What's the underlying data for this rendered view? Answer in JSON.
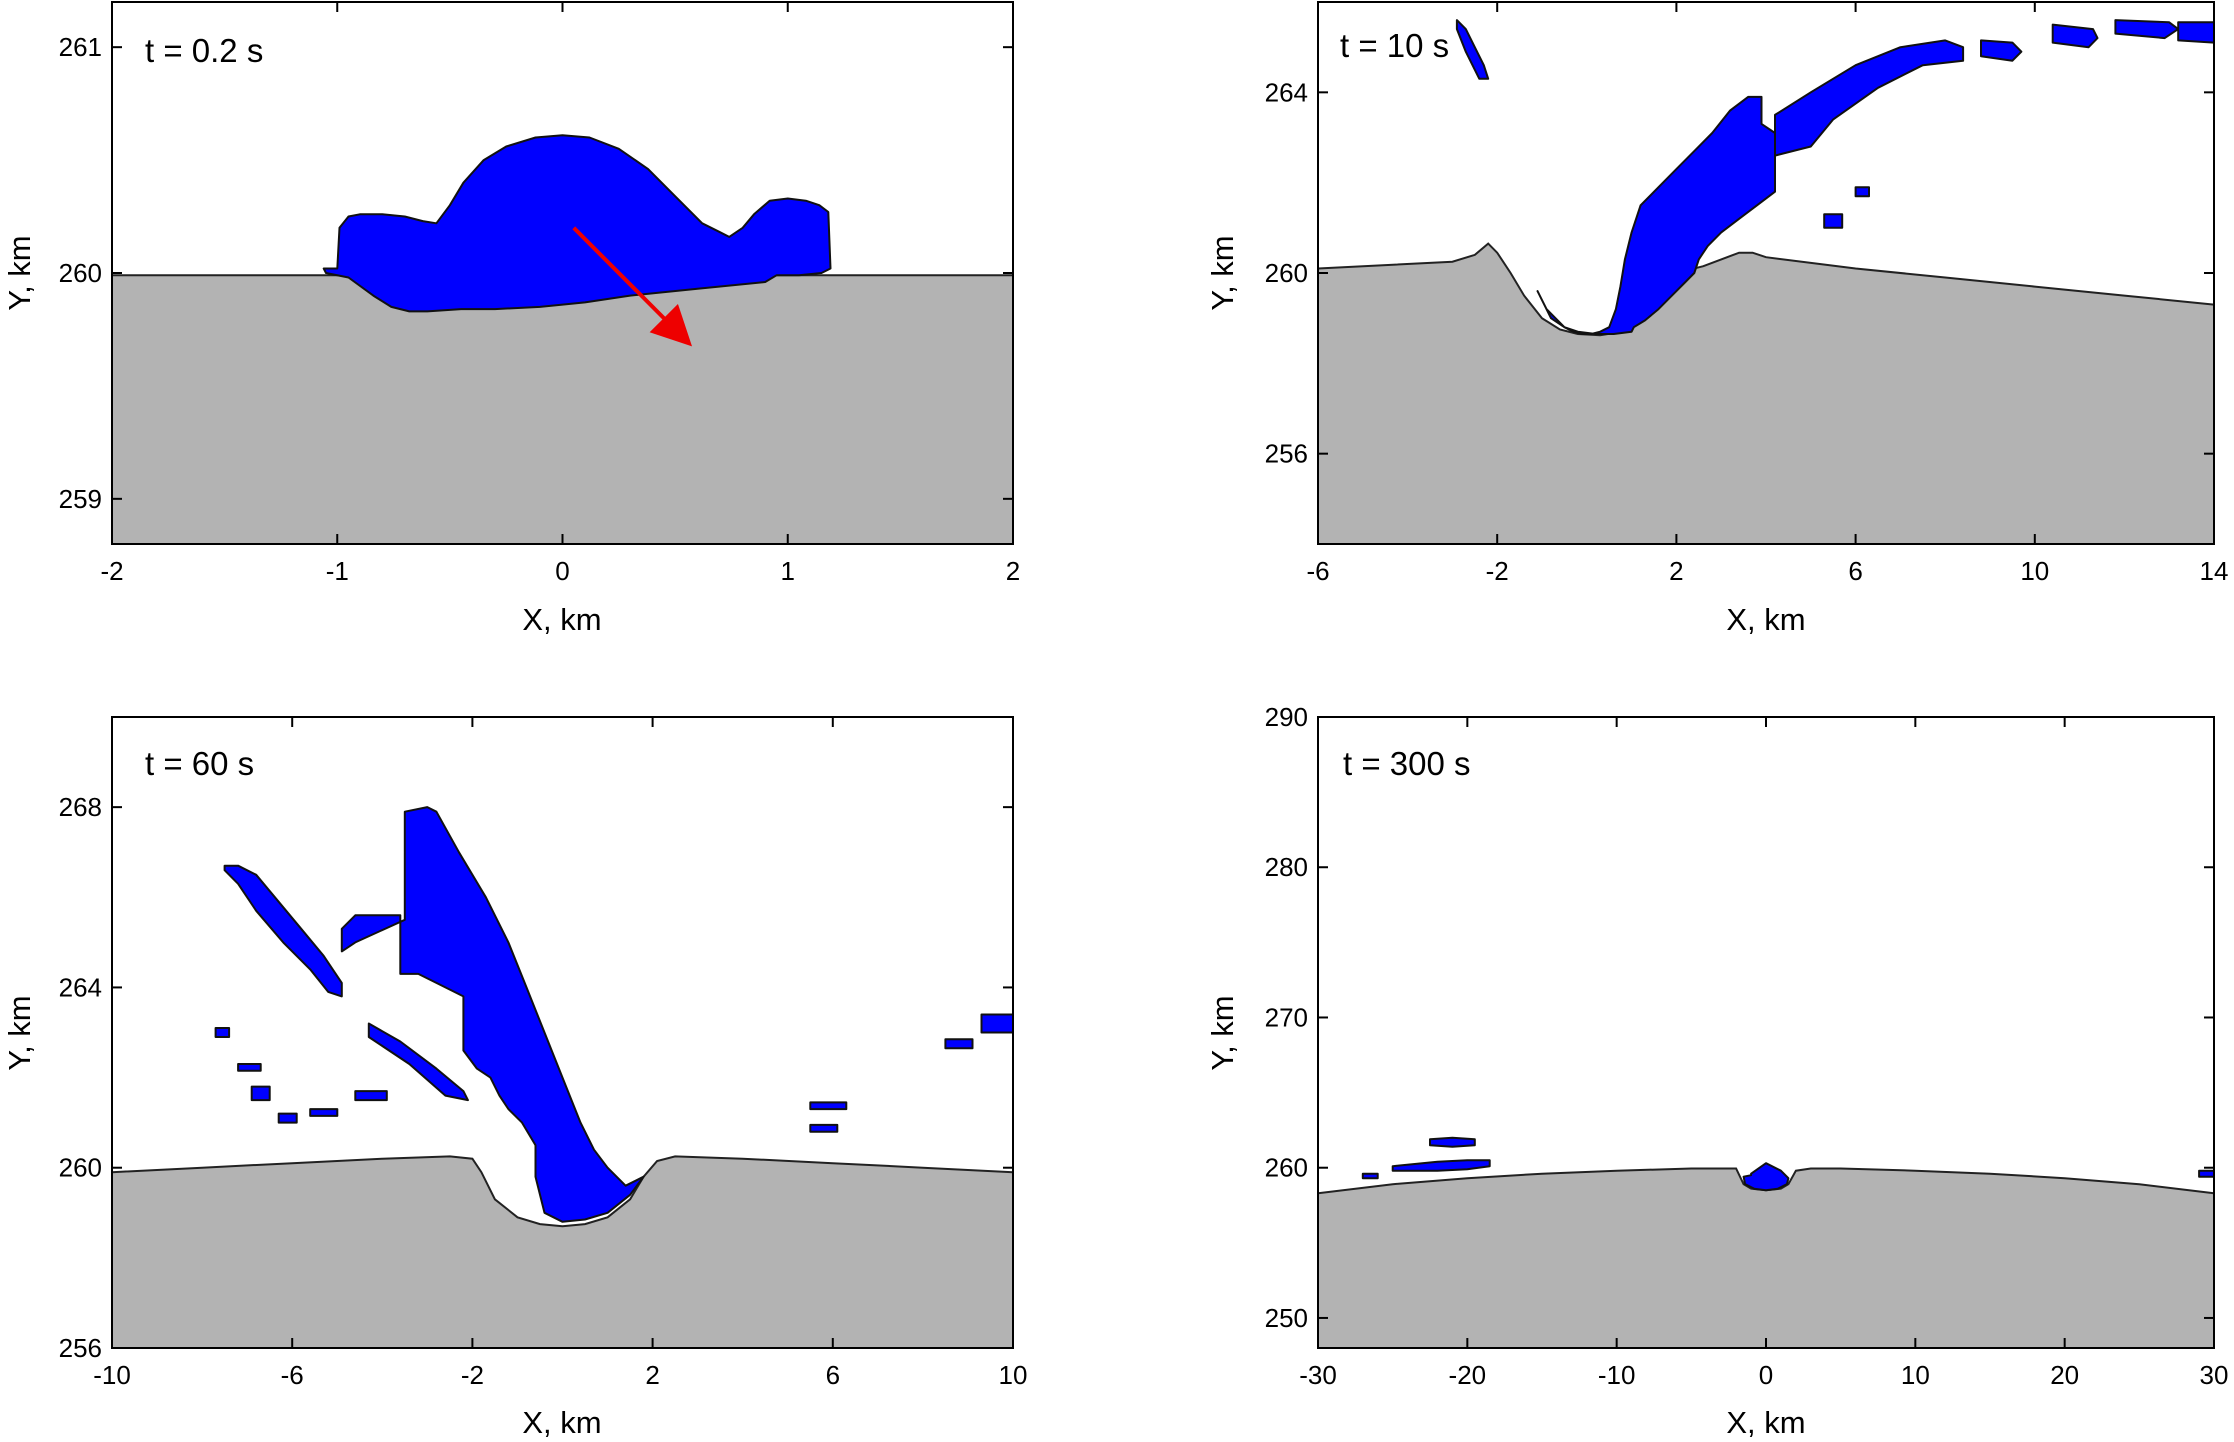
{
  "chart_data": [
    {
      "type": "area",
      "title": "t = 0.2 s",
      "xlabel": "X, km",
      "ylabel": "Y, km",
      "xlim": [
        -2,
        2
      ],
      "ylim": [
        258.8,
        261.2
      ],
      "xticks": [
        -2,
        -1,
        0,
        1,
        2
      ],
      "yticks": [
        259,
        260,
        261
      ],
      "colors": {
        "surface": "#b3b3b3",
        "ejecta": "#0000ff",
        "impactor_direction": "#ee0000"
      },
      "surface": {
        "x": [
          -2,
          2
        ],
        "y": [
          259.99,
          259.99
        ]
      },
      "ejecta": [
        {
          "x": [
            -1.0,
            -0.99,
            -0.95,
            -0.9,
            -0.8,
            -0.7,
            -0.62,
            -0.56,
            -0.5,
            -0.44,
            -0.35,
            -0.25,
            -0.12,
            0.0,
            0.12,
            0.25,
            0.38,
            0.5,
            0.62,
            0.7,
            0.74,
            0.8,
            0.85,
            0.92,
            1.0,
            1.08,
            1.14,
            1.18,
            1.19,
            1.15,
            1.05,
            0.95,
            0.9,
            0.6,
            0.3,
            0.1,
            -0.1,
            -0.3,
            -0.45,
            -0.6,
            -0.68,
            -0.76,
            -0.84,
            -0.95,
            -1.05,
            -1.06
          ],
          "y": [
            260.02,
            260.2,
            260.25,
            260.26,
            260.26,
            260.25,
            260.23,
            260.22,
            260.3,
            260.4,
            260.5,
            260.56,
            260.6,
            260.61,
            260.6,
            260.55,
            260.46,
            260.34,
            260.22,
            260.18,
            260.16,
            260.2,
            260.26,
            260.32,
            260.33,
            260.32,
            260.3,
            260.27,
            260.02,
            260.0,
            259.99,
            259.99,
            259.96,
            259.93,
            259.9,
            259.87,
            259.85,
            259.84,
            259.84,
            259.83,
            259.83,
            259.85,
            259.9,
            259.98,
            260.0,
            260.02
          ]
        }
      ],
      "arrow": {
        "from": [
          0.05,
          260.2
        ],
        "to": [
          0.55,
          259.7
        ]
      }
    },
    {
      "type": "area",
      "title": "t = 10 s",
      "xlabel": "X, km",
      "ylabel": "Y, km",
      "xlim": [
        -6,
        14
      ],
      "ylim": [
        254,
        266
      ],
      "xticks": [
        -6,
        -2,
        2,
        6,
        10,
        14
      ],
      "yticks": [
        256,
        260,
        264
      ],
      "colors": {
        "surface": "#b3b3b3",
        "ejecta": "#0000ff"
      },
      "surface": {
        "x": [
          -6,
          -3,
          -2.5,
          -2.2,
          -2.0,
          -1.7,
          -1.4,
          -1.0,
          -0.6,
          -0.2,
          0.3,
          0.8,
          1.2,
          1.5,
          1.8,
          2.2,
          2.6,
          3.0,
          3.4,
          3.7,
          4.0,
          6,
          8,
          10,
          12,
          14
        ],
        "y": [
          260.1,
          260.25,
          260.4,
          260.65,
          260.45,
          260.0,
          259.5,
          259.0,
          258.75,
          258.65,
          258.62,
          258.7,
          259.0,
          259.5,
          259.9,
          260.05,
          260.15,
          260.3,
          260.45,
          260.45,
          260.35,
          260.1,
          259.9,
          259.7,
          259.5,
          259.3
        ]
      },
      "ejecta": [
        {
          "x": [
            -0.5,
            -0.3,
            -0.1,
            0.1,
            0.3,
            0.5,
            0.65,
            0.75,
            0.85,
            1.0,
            1.2,
            1.6,
            2.0,
            2.4,
            2.8,
            3.2,
            3.6,
            3.9,
            3.9,
            4.2,
            4.2,
            3.8,
            3.4,
            3.0,
            2.7,
            2.5,
            2.4,
            2.2,
            1.9,
            1.6,
            1.3,
            1.05,
            1.0,
            0.6,
            0.2,
            -0.2,
            -0.5,
            -0.9,
            -1.1,
            -0.8
          ],
          "y": [
            258.8,
            258.7,
            258.65,
            258.65,
            258.7,
            258.8,
            259.2,
            259.7,
            260.3,
            260.9,
            261.5,
            261.9,
            262.3,
            262.7,
            263.1,
            263.6,
            263.9,
            263.9,
            263.3,
            263.1,
            261.8,
            261.5,
            261.2,
            260.9,
            260.6,
            260.3,
            260.0,
            259.8,
            259.5,
            259.2,
            258.95,
            258.8,
            258.7,
            258.65,
            258.65,
            258.7,
            258.8,
            259.2,
            259.6,
            259.0
          ]
        },
        {
          "x": [
            4.2,
            5.0,
            6.0,
            7.0,
            8.0,
            8.4,
            8.4,
            7.5,
            6.5,
            5.5,
            5.0,
            4.2
          ],
          "y": [
            263.5,
            264.0,
            264.6,
            265.0,
            265.15,
            265.0,
            264.7,
            264.6,
            264.1,
            263.4,
            262.8,
            262.6
          ]
        },
        {
          "x": [
            8.8,
            9.5,
            9.7,
            9.5,
            8.8
          ],
          "y": [
            265.15,
            265.1,
            264.9,
            264.7,
            264.8
          ]
        },
        {
          "x": [
            10.4,
            11.3,
            11.4,
            11.2,
            10.4
          ],
          "y": [
            265.5,
            265.4,
            265.2,
            265.0,
            265.1
          ]
        },
        {
          "x": [
            11.8,
            13.0,
            13.2,
            12.9,
            11.8
          ],
          "y": [
            265.6,
            265.55,
            265.4,
            265.2,
            265.3
          ]
        },
        {
          "x": [
            13.2,
            14.0,
            14.0,
            13.2
          ],
          "y": [
            265.55,
            265.55,
            265.1,
            265.15
          ]
        },
        {
          "x": [
            -2.9,
            -2.7,
            -2.5,
            -2.3,
            -2.2,
            -2.4,
            -2.7,
            -2.9
          ],
          "y": [
            265.6,
            265.4,
            265.0,
            264.6,
            264.3,
            264.3,
            264.9,
            265.4
          ]
        },
        {
          "x": [
            6.0,
            6.3,
            6.3,
            6.0
          ],
          "y": [
            261.9,
            261.9,
            261.7,
            261.7
          ]
        },
        {
          "x": [
            5.3,
            5.7,
            5.7,
            5.3
          ],
          "y": [
            261.3,
            261.3,
            261.0,
            261.0
          ]
        }
      ]
    },
    {
      "type": "area",
      "title": "t = 60 s",
      "xlabel": "X, km",
      "ylabel": "Y, km",
      "xlim": [
        -10,
        10
      ],
      "ylim": [
        256,
        270
      ],
      "xticks": [
        -10,
        -6,
        -2,
        2,
        6,
        10
      ],
      "yticks": [
        256,
        260,
        264,
        268
      ],
      "colors": {
        "surface": "#b3b3b3",
        "ejecta": "#0000ff"
      },
      "surface": {
        "x": [
          -10,
          -8,
          -6,
          -4,
          -2.5,
          -2.0,
          -1.8,
          -1.5,
          -1.0,
          -0.5,
          0.0,
          0.5,
          1.0,
          1.5,
          1.8,
          2.1,
          2.5,
          4,
          6,
          8,
          10
        ],
        "y": [
          259.9,
          260.0,
          260.1,
          260.2,
          260.25,
          260.2,
          259.9,
          259.3,
          258.9,
          258.75,
          258.7,
          258.75,
          258.9,
          259.3,
          259.8,
          260.15,
          260.25,
          260.2,
          260.1,
          260.0,
          259.9
        ]
      },
      "ejecta": [
        {
          "x": [
            -3.5,
            -3.0,
            -2.8,
            -2.3,
            -1.7,
            -1.2,
            -0.8,
            -0.4,
            0.0,
            0.4,
            0.7,
            1.0,
            1.4,
            1.8,
            1.5,
            1.0,
            0.5,
            0.0,
            -0.4,
            -0.6,
            -0.6,
            -0.9,
            -1.2,
            -1.4,
            -1.6,
            -1.9,
            -2.2,
            -2.2,
            -2.6,
            -3.2,
            -3.6,
            -3.6,
            -4.6,
            -4.9,
            -4.9,
            -4.6,
            -3.5
          ],
          "y": [
            267.9,
            268.0,
            267.9,
            267.0,
            266.0,
            265.0,
            264.0,
            263.0,
            262.0,
            261.0,
            260.4,
            260.0,
            259.6,
            259.8,
            259.4,
            259.0,
            258.85,
            258.8,
            259.0,
            259.8,
            260.5,
            261.0,
            261.3,
            261.6,
            262.0,
            262.2,
            262.6,
            263.8,
            264.0,
            264.3,
            264.3,
            265.6,
            265.6,
            265.3,
            264.8,
            265.0,
            265.5
          ]
        },
        {
          "x": [
            -7.5,
            -7.2,
            -6.8,
            -6.3,
            -5.8,
            -5.3,
            -4.9,
            -4.9,
            -5.2,
            -5.6,
            -6.2,
            -6.8,
            -7.2,
            -7.5
          ],
          "y": [
            266.7,
            266.7,
            266.5,
            265.9,
            265.3,
            264.7,
            264.1,
            263.8,
            263.9,
            264.4,
            265.0,
            265.7,
            266.3,
            266.6
          ]
        },
        {
          "x": [
            -4.3,
            -3.6,
            -2.8,
            -2.2,
            -2.1,
            -2.6,
            -3.4,
            -4.3
          ],
          "y": [
            263.2,
            262.8,
            262.2,
            261.7,
            261.5,
            261.6,
            262.3,
            262.9
          ]
        },
        {
          "x": [
            -7.7,
            -7.4,
            -7.4,
            -7.7
          ],
          "y": [
            263.1,
            263.1,
            262.9,
            262.9
          ]
        },
        {
          "x": [
            -7.2,
            -6.7,
            -6.7,
            -7.2
          ],
          "y": [
            262.3,
            262.3,
            262.15,
            262.15
          ]
        },
        {
          "x": [
            -6.9,
            -6.5,
            -6.5,
            -6.9
          ],
          "y": [
            261.8,
            261.8,
            261.5,
            261.5
          ]
        },
        {
          "x": [
            -6.3,
            -5.9,
            -5.9,
            -6.3
          ],
          "y": [
            261.2,
            261.2,
            261.0,
            261.0
          ]
        },
        {
          "x": [
            -5.6,
            -5.0,
            -5.0,
            -5.6
          ],
          "y": [
            261.3,
            261.3,
            261.15,
            261.15
          ]
        },
        {
          "x": [
            -4.6,
            -3.9,
            -3.9,
            -4.6
          ],
          "y": [
            261.7,
            261.7,
            261.5,
            261.5
          ]
        },
        {
          "x": [
            5.5,
            6.3,
            6.3,
            5.5
          ],
          "y": [
            261.45,
            261.45,
            261.3,
            261.3
          ]
        },
        {
          "x": [
            5.5,
            6.1,
            6.1,
            5.5
          ],
          "y": [
            260.95,
            260.95,
            260.8,
            260.8
          ]
        },
        {
          "x": [
            9.3,
            10.0,
            10.0,
            9.3
          ],
          "y": [
            263.4,
            263.4,
            263.0,
            263.0
          ]
        },
        {
          "x": [
            8.5,
            9.1,
            9.1,
            8.5
          ],
          "y": [
            262.85,
            262.85,
            262.65,
            262.65
          ]
        }
      ]
    },
    {
      "type": "area",
      "title": "t = 300 s",
      "xlabel": "X, km",
      "ylabel": "Y, km",
      "xlim": [
        -30,
        30
      ],
      "ylim": [
        248,
        290
      ],
      "xticks": [
        -30,
        -20,
        -10,
        0,
        10,
        20,
        30
      ],
      "yticks": [
        250,
        260,
        270,
        280,
        290
      ],
      "colors": {
        "surface": "#b3b3b3",
        "ejecta": "#0000ff"
      },
      "surface": {
        "x": [
          -30,
          -25,
          -20,
          -15,
          -10,
          -5,
          -2.0,
          -1.5,
          -1.0,
          0.0,
          1.0,
          1.5,
          2.0,
          3.0,
          5,
          10,
          15,
          20,
          25,
          30
        ],
        "y": [
          258.3,
          258.9,
          259.3,
          259.6,
          259.8,
          259.95,
          259.95,
          258.9,
          258.6,
          258.5,
          258.6,
          258.9,
          259.8,
          259.95,
          259.95,
          259.8,
          259.6,
          259.3,
          258.9,
          258.3
        ]
      },
      "ejecta": [
        {
          "x": [
            -1.0,
            0.0,
            1.0,
            1.5,
            1.4,
            0.8,
            0.0,
            -0.8,
            -1.4,
            -1.5,
            -1.0
          ],
          "y": [
            259.6,
            260.3,
            259.8,
            259.3,
            258.9,
            258.6,
            258.5,
            258.6,
            258.9,
            259.4,
            259.5
          ]
        },
        {
          "x": [
            -25.0,
            -22.0,
            -20.0,
            -18.5,
            -18.5,
            -20.0,
            -22.0,
            -25.0
          ],
          "y": [
            260.1,
            260.4,
            260.5,
            260.5,
            260.1,
            259.9,
            259.8,
            259.8
          ]
        },
        {
          "x": [
            -22.5,
            -21.0,
            -19.5,
            -19.5,
            -21.0,
            -22.5
          ],
          "y": [
            261.9,
            262.0,
            261.9,
            261.5,
            261.4,
            261.5
          ]
        },
        {
          "x": [
            -27.0,
            -26.0,
            -26.0,
            -27.0
          ],
          "y": [
            259.6,
            259.6,
            259.3,
            259.3
          ]
        },
        {
          "x": [
            29.0,
            30.0,
            30.0,
            29.0
          ],
          "y": [
            259.8,
            259.8,
            259.4,
            259.4
          ]
        }
      ]
    }
  ]
}
